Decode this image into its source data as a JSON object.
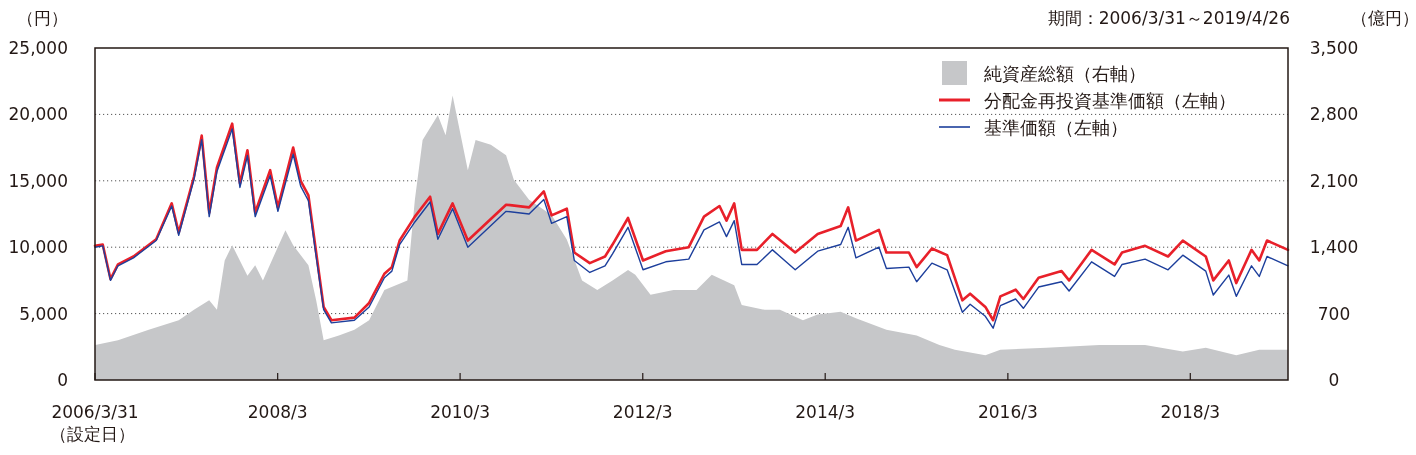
{
  "chart_data": {
    "type": "line",
    "subtitle": "期間：2006/3/31～2019/4/26",
    "ylabel": "（円）",
    "y2label": "（億円）",
    "xlim": [
      "2006-03-31",
      "2019-04-26"
    ],
    "xticks": [
      {
        "value": "2006-03-31",
        "label": "2006/3/31\n（設定日）"
      },
      {
        "value": "2008-03-31",
        "label": "2008/3"
      },
      {
        "value": "2010-03-31",
        "label": "2010/3"
      },
      {
        "value": "2012-03-31",
        "label": "2012/3"
      },
      {
        "value": "2014-03-31",
        "label": "2014/3"
      },
      {
        "value": "2016-03-31",
        "label": "2016/3"
      },
      {
        "value": "2018-03-31",
        "label": "2018/3"
      }
    ],
    "ylim": [
      0,
      25000
    ],
    "yticks": [
      0,
      {
        "value": 5000,
        "label": "5,000"
      },
      {
        "value": 10000,
        "label": "10,000"
      },
      {
        "value": 15000,
        "label": "15,000"
      },
      {
        "value": 20000,
        "label": "20,000"
      },
      {
        "value": 25000,
        "label": "25,000"
      }
    ],
    "y2lim": [
      0,
      3500
    ],
    "y2ticks": [
      0,
      700,
      {
        "value": 1400,
        "label": "1,400"
      },
      {
        "value": 2100,
        "label": "2,100"
      },
      {
        "value": 2800,
        "label": "2,800"
      },
      {
        "value": 3500,
        "label": "3,500"
      }
    ],
    "grid": "y",
    "legend": "top right",
    "series": [
      {
        "name": "純資産総額（右軸）",
        "type": "area",
        "axis": "y2",
        "color": "#c6c7c9",
        "x": [
          "2006-03-31",
          "2006-04",
          "2006-07",
          "2006-11",
          "2007-03",
          "2007-05",
          "2007-07",
          "2007-08",
          "2007-09",
          "2007-10",
          "2007-12",
          "2008-01",
          "2008-02",
          "2008-05",
          "2008-06",
          "2008-08",
          "2008-09",
          "2008-10",
          "2008-12",
          "2009-02",
          "2009-04",
          "2009-06",
          "2009-09",
          "2009-10",
          "2009-11",
          "2010-01",
          "2010-02",
          "2010-03",
          "2010-05",
          "2010-06",
          "2010-08",
          "2010-10",
          "2010-11",
          "2011-01",
          "2011-04",
          "2011-06",
          "2011-08",
          "2011-10",
          "2011-12",
          "2012-02",
          "2012-03",
          "2012-05",
          "2012-08",
          "2012-11",
          "2013-01",
          "2013-04",
          "2013-05",
          "2013-08",
          "2013-10",
          "2014-01",
          "2014-03",
          "2014-06",
          "2014-08",
          "2014-12",
          "2015-04",
          "2015-07",
          "2015-09",
          "2016-01",
          "2016-03",
          "2016-09",
          "2017-04",
          "2017-10",
          "2018-03",
          "2018-06",
          "2018-10",
          "2019-01",
          "2019-04-26"
        ],
        "values": [
          210,
          370,
          420,
          530,
          630,
          740,
          840,
          740,
          1260,
          1420,
          1100,
          1210,
          1050,
          1580,
          1420,
          1210,
          840,
          420,
          470,
          530,
          630,
          950,
          1050,
          1900,
          2530,
          2790,
          2580,
          3000,
          2210,
          2530,
          2480,
          2370,
          2110,
          1900,
          1740,
          1480,
          1050,
          950,
          1050,
          1160,
          1110,
          900,
          950,
          950,
          1110,
          1000,
          790,
          740,
          740,
          630,
          690,
          720,
          650,
          530,
          470,
          370,
          320,
          260,
          320,
          340,
          370,
          370,
          300,
          340,
          260,
          320,
          320
        ]
      },
      {
        "name": "分配金再投資基準価額（左軸）",
        "color": "#e8202a",
        "x": [
          "2006-03-31",
          "2006-05",
          "2006-06",
          "2006-07",
          "2006-09",
          "2006-12",
          "2007-02",
          "2007-03",
          "2007-05",
          "2007-06",
          "2007-07",
          "2007-08",
          "2007-10",
          "2007-11",
          "2007-12",
          "2008-01",
          "2008-03",
          "2008-04",
          "2008-06",
          "2008-07",
          "2008-08",
          "2008-09",
          "2008-10",
          "2008-11",
          "2009-02",
          "2009-04",
          "2009-06",
          "2009-07",
          "2009-08",
          "2009-10",
          "2009-12",
          "2010-01",
          "2010-03",
          "2010-05",
          "2010-10",
          "2011-01",
          "2011-03",
          "2011-04",
          "2011-06",
          "2011-07",
          "2011-09",
          "2011-11",
          "2011-12",
          "2012-02",
          "2012-04",
          "2012-07",
          "2012-10",
          "2012-12",
          "2013-02",
          "2013-03",
          "2013-04",
          "2013-05",
          "2013-07",
          "2013-09",
          "2013-12",
          "2014-03",
          "2014-06",
          "2014-07",
          "2014-08",
          "2014-11",
          "2014-12",
          "2015-03",
          "2015-04",
          "2015-06",
          "2015-08",
          "2015-10",
          "2015-11",
          "2016-01",
          "2016-02",
          "2016-03",
          "2016-05",
          "2016-06",
          "2016-08",
          "2016-11",
          "2016-12",
          "2017-03",
          "2017-06",
          "2017-07",
          "2017-10",
          "2018-01",
          "2018-03",
          "2018-06",
          "2018-07",
          "2018-09",
          "2018-10",
          "2018-12",
          "2019-01",
          "2019-02",
          "2019-04-26"
        ],
        "values": [
          10100,
          10200,
          7600,
          8700,
          9300,
          10600,
          13300,
          11100,
          15300,
          18400,
          12600,
          16000,
          19300,
          14800,
          17300,
          12600,
          15800,
          13000,
          17500,
          15000,
          13900,
          9600,
          5500,
          4500,
          4700,
          5800,
          8000,
          8500,
          10500,
          12300,
          13800,
          11000,
          13300,
          10500,
          13200,
          13000,
          14200,
          12400,
          12900,
          9600,
          8800,
          9300,
          10200,
          12200,
          9000,
          9700,
          10000,
          12300,
          13100,
          12000,
          13300,
          9800,
          9800,
          11000,
          9600,
          11000,
          11600,
          13000,
          10500,
          11300,
          9600,
          9600,
          8500,
          9900,
          9400,
          6000,
          6500,
          5500,
          4500,
          6300,
          6800,
          6100,
          7700,
          8200,
          7500,
          9800,
          8700,
          9600,
          10100,
          9300,
          10500,
          9300,
          7500,
          9000,
          7300,
          9800,
          9000,
          10500,
          9800
        ]
      },
      {
        "name": "基準価額（左軸）",
        "color": "#1d3f9c",
        "x": [
          "2006-03-31",
          "2006-05",
          "2006-06",
          "2006-07",
          "2006-09",
          "2006-12",
          "2007-02",
          "2007-03",
          "2007-05",
          "2007-06",
          "2007-07",
          "2007-08",
          "2007-10",
          "2007-11",
          "2007-12",
          "2008-01",
          "2008-03",
          "2008-04",
          "2008-06",
          "2008-07",
          "2008-08",
          "2008-09",
          "2008-10",
          "2008-11",
          "2009-02",
          "2009-04",
          "2009-06",
          "2009-07",
          "2009-08",
          "2009-10",
          "2009-12",
          "2010-01",
          "2010-03",
          "2010-05",
          "2010-10",
          "2011-01",
          "2011-03",
          "2011-04",
          "2011-06",
          "2011-07",
          "2011-09",
          "2011-11",
          "2011-12",
          "2012-02",
          "2012-04",
          "2012-07",
          "2012-10",
          "2012-12",
          "2013-02",
          "2013-03",
          "2013-04",
          "2013-05",
          "2013-07",
          "2013-09",
          "2013-12",
          "2014-03",
          "2014-06",
          "2014-07",
          "2014-08",
          "2014-11",
          "2014-12",
          "2015-03",
          "2015-04",
          "2015-06",
          "2015-08",
          "2015-10",
          "2015-11",
          "2016-01",
          "2016-02",
          "2016-03",
          "2016-05",
          "2016-06",
          "2016-08",
          "2016-11",
          "2016-12",
          "2017-03",
          "2017-06",
          "2017-07",
          "2017-10",
          "2018-01",
          "2018-03",
          "2018-06",
          "2018-07",
          "2018-09",
          "2018-10",
          "2018-12",
          "2019-01",
          "2019-02",
          "2019-04-26"
        ],
        "values": [
          10000,
          10100,
          7500,
          8600,
          9200,
          10500,
          13100,
          10900,
          15100,
          18100,
          12300,
          15700,
          18900,
          14500,
          16900,
          12300,
          15400,
          12700,
          17000,
          14600,
          13500,
          9300,
          5300,
          4300,
          4500,
          5500,
          7700,
          8200,
          10200,
          11900,
          13400,
          10600,
          12900,
          10000,
          12700,
          12500,
          13600,
          11800,
          12300,
          9000,
          8100,
          8600,
          9500,
          11500,
          8300,
          8900,
          9100,
          11300,
          11900,
          10800,
          12000,
          8700,
          8700,
          9800,
          8300,
          9700,
          10200,
          11500,
          9200,
          10000,
          8400,
          8500,
          7400,
          8800,
          8300,
          5100,
          5700,
          4800,
          3900,
          5600,
          6100,
          5400,
          7000,
          7400,
          6700,
          8900,
          7800,
          8700,
          9100,
          8300,
          9400,
          8200,
          6400,
          7900,
          6300,
          8600,
          7800,
          9300,
          8600
        ]
      }
    ]
  }
}
